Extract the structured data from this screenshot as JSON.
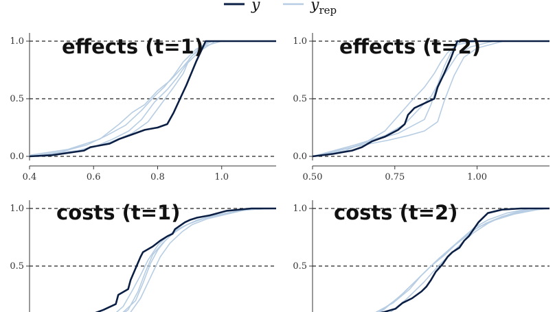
{
  "legend": {
    "items": [
      {
        "label": "y",
        "color": "#0b1f45"
      },
      {
        "label": "y",
        "sub": "rep",
        "color": "#b7cde3"
      }
    ]
  },
  "chart_data": [
    {
      "type": "line",
      "title": "effects (t=1)",
      "xlim": [
        0.4,
        1.17
      ],
      "ylim": [
        0,
        1
      ],
      "xticks": [
        {
          "v": 0.4,
          "label": "0.4"
        },
        {
          "v": 0.6,
          "label": "0.6"
        },
        {
          "v": 0.8,
          "label": "0.8"
        },
        {
          "v": 1.0,
          "label": "1.0"
        }
      ],
      "yticks": [
        {
          "v": 0.0,
          "label": "0.0"
        },
        {
          "v": 0.5,
          "label": "0.5"
        },
        {
          "v": 1.0,
          "label": "1.0"
        }
      ],
      "grid": "horizontal-dashed",
      "series": [
        {
          "role": "y",
          "color": "#0b1f45",
          "x": [
            0.4,
            0.47,
            0.52,
            0.57,
            0.59,
            0.65,
            0.68,
            0.72,
            0.76,
            0.8,
            0.83,
            0.85,
            0.87,
            0.89,
            0.92,
            0.95,
            1.17
          ],
          "y": [
            0.0,
            0.01,
            0.03,
            0.05,
            0.08,
            0.11,
            0.15,
            0.19,
            0.23,
            0.25,
            0.28,
            0.38,
            0.5,
            0.62,
            0.82,
            1.0,
            1.0
          ]
        },
        {
          "role": "y_rep",
          "color": "#b7cde3",
          "x": [
            0.4,
            0.5,
            0.58,
            0.64,
            0.7,
            0.75,
            0.79,
            0.82,
            0.85,
            0.88,
            0.92,
            0.97,
            1.17
          ],
          "y": [
            0.0,
            0.04,
            0.1,
            0.18,
            0.27,
            0.4,
            0.52,
            0.6,
            0.7,
            0.82,
            0.93,
            1.0,
            1.0
          ]
        },
        {
          "role": "y_rep",
          "color": "#b7cde3",
          "x": [
            0.4,
            0.52,
            0.62,
            0.68,
            0.72,
            0.76,
            0.8,
            0.84,
            0.88,
            0.91,
            0.95,
            1.0,
            1.17
          ],
          "y": [
            0.01,
            0.06,
            0.15,
            0.28,
            0.38,
            0.45,
            0.57,
            0.66,
            0.78,
            0.88,
            0.96,
            1.0,
            1.0
          ]
        },
        {
          "role": "y_rep",
          "color": "#b7cde3",
          "x": [
            0.4,
            0.55,
            0.65,
            0.72,
            0.77,
            0.81,
            0.85,
            0.88,
            0.9,
            0.93,
            0.96,
            1.17
          ],
          "y": [
            0.0,
            0.05,
            0.12,
            0.2,
            0.3,
            0.45,
            0.6,
            0.72,
            0.85,
            0.94,
            1.0,
            1.0
          ]
        },
        {
          "role": "y_rep",
          "color": "#b7cde3",
          "x": [
            0.4,
            0.53,
            0.6,
            0.66,
            0.71,
            0.75,
            0.79,
            0.83,
            0.86,
            0.89,
            0.93,
            0.98,
            1.17
          ],
          "y": [
            0.0,
            0.03,
            0.08,
            0.15,
            0.22,
            0.32,
            0.47,
            0.58,
            0.68,
            0.8,
            0.91,
            1.0,
            1.0
          ]
        }
      ]
    },
    {
      "type": "line",
      "title": "effects (t=2)",
      "xlim": [
        0.5,
        1.22
      ],
      "ylim": [
        0,
        1
      ],
      "xticks": [
        {
          "v": 0.5,
          "label": "0.50"
        },
        {
          "v": 0.75,
          "label": "0.75"
        },
        {
          "v": 1.0,
          "label": "1.00"
        }
      ],
      "yticks": [
        {
          "v": 0.0,
          "label": "0.0"
        },
        {
          "v": 0.5,
          "label": "0.5"
        },
        {
          "v": 1.0,
          "label": "1.0"
        }
      ],
      "grid": "horizontal-dashed",
      "series": [
        {
          "role": "y",
          "color": "#0b1f45",
          "x": [
            0.5,
            0.56,
            0.62,
            0.65,
            0.68,
            0.72,
            0.76,
            0.78,
            0.79,
            0.81,
            0.84,
            0.87,
            0.88,
            0.9,
            0.92,
            0.94,
            1.22
          ],
          "y": [
            0.0,
            0.02,
            0.05,
            0.08,
            0.13,
            0.17,
            0.23,
            0.28,
            0.36,
            0.42,
            0.46,
            0.5,
            0.6,
            0.72,
            0.85,
            1.0,
            1.0
          ]
        },
        {
          "role": "y_rep",
          "color": "#b7cde3",
          "x": [
            0.5,
            0.6,
            0.66,
            0.72,
            0.76,
            0.8,
            0.84,
            0.87,
            0.89,
            0.91,
            0.94,
            1.0,
            1.22
          ],
          "y": [
            0.0,
            0.05,
            0.12,
            0.22,
            0.35,
            0.48,
            0.6,
            0.72,
            0.82,
            0.9,
            0.97,
            1.0,
            1.0
          ]
        },
        {
          "role": "y_rep",
          "color": "#b7cde3",
          "x": [
            0.5,
            0.62,
            0.7,
            0.76,
            0.8,
            0.84,
            0.86,
            0.88,
            0.9,
            0.92,
            0.95,
            1.22
          ],
          "y": [
            0.0,
            0.08,
            0.15,
            0.2,
            0.26,
            0.32,
            0.45,
            0.62,
            0.78,
            0.9,
            1.0,
            1.0
          ]
        },
        {
          "role": "y_rep",
          "color": "#b7cde3",
          "x": [
            0.5,
            0.63,
            0.72,
            0.78,
            0.82,
            0.86,
            0.88,
            0.91,
            0.94,
            0.98,
            1.05,
            1.22
          ],
          "y": [
            0.0,
            0.1,
            0.18,
            0.28,
            0.4,
            0.52,
            0.62,
            0.75,
            0.88,
            0.95,
            1.0,
            1.0
          ]
        },
        {
          "role": "y_rep",
          "color": "#b7cde3",
          "x": [
            0.5,
            0.64,
            0.73,
            0.79,
            0.84,
            0.88,
            0.9,
            0.93,
            0.96,
            1.0,
            1.08,
            1.22
          ],
          "y": [
            0.0,
            0.09,
            0.14,
            0.18,
            0.22,
            0.3,
            0.48,
            0.7,
            0.86,
            0.94,
            1.0,
            1.0
          ]
        }
      ]
    },
    {
      "type": "line",
      "title": "costs (t=1)",
      "xlim": [
        0,
        100
      ],
      "ylim": [
        0,
        1
      ],
      "xticks": [],
      "yticks": [
        {
          "v": 0.5,
          "label": "0.5"
        },
        {
          "v": 1.0,
          "label": "1.0"
        }
      ],
      "grid": "horizontal-dashed",
      "series": [
        {
          "role": "y",
          "color": "#0b1f45",
          "x": [
            12,
            20,
            30,
            35,
            36,
            40,
            41,
            43,
            45,
            46,
            50,
            53,
            56,
            58,
            59,
            61,
            63,
            65,
            68,
            73,
            80,
            90,
            100
          ],
          "y": [
            0.0,
            0.04,
            0.12,
            0.17,
            0.25,
            0.3,
            0.38,
            0.48,
            0.58,
            0.62,
            0.67,
            0.72,
            0.76,
            0.78,
            0.82,
            0.85,
            0.88,
            0.9,
            0.92,
            0.94,
            0.98,
            1.0,
            1.0
          ]
        },
        {
          "role": "y_rep",
          "color": "#b7cde3",
          "x": [
            30,
            38,
            42,
            45,
            48,
            52,
            56,
            60,
            66,
            72,
            80,
            90,
            100
          ],
          "y": [
            0.0,
            0.15,
            0.3,
            0.42,
            0.55,
            0.68,
            0.76,
            0.82,
            0.88,
            0.92,
            0.96,
            1.0,
            1.0
          ]
        },
        {
          "role": "y_rep",
          "color": "#b7cde3",
          "x": [
            32,
            40,
            44,
            47,
            50,
            54,
            58,
            63,
            68,
            75,
            85,
            95,
            100
          ],
          "y": [
            0.0,
            0.12,
            0.28,
            0.45,
            0.6,
            0.7,
            0.78,
            0.85,
            0.9,
            0.94,
            0.98,
            1.0,
            1.0
          ]
        },
        {
          "role": "y_rep",
          "color": "#b7cde3",
          "x": [
            34,
            41,
            45,
            49,
            53,
            57,
            62,
            66,
            72,
            80,
            88,
            100
          ],
          "y": [
            0.0,
            0.1,
            0.22,
            0.4,
            0.58,
            0.7,
            0.8,
            0.86,
            0.91,
            0.95,
            0.99,
            1.0
          ]
        },
        {
          "role": "y_rep",
          "color": "#b7cde3",
          "x": [
            28,
            37,
            43,
            46,
            49,
            52,
            55,
            59,
            64,
            70,
            78,
            88,
            100
          ],
          "y": [
            0.0,
            0.08,
            0.2,
            0.35,
            0.52,
            0.64,
            0.72,
            0.8,
            0.86,
            0.91,
            0.95,
            0.99,
            1.0
          ]
        }
      ]
    },
    {
      "type": "line",
      "title": "costs (t=2)",
      "xlim": [
        0,
        100
      ],
      "ylim": [
        0,
        1
      ],
      "xticks": [],
      "yticks": [
        {
          "v": 0.5,
          "label": "0.5"
        },
        {
          "v": 1.0,
          "label": "1.0"
        }
      ],
      "grid": "horizontal-dashed",
      "series": [
        {
          "role": "y",
          "color": "#0b1f45",
          "x": [
            10,
            20,
            30,
            35,
            38,
            42,
            46,
            48,
            50,
            52,
            55,
            57,
            59,
            62,
            64,
            66,
            68,
            70,
            72,
            74,
            80,
            88,
            100
          ],
          "y": [
            0.0,
            0.05,
            0.1,
            0.13,
            0.18,
            0.22,
            0.28,
            0.32,
            0.38,
            0.45,
            0.52,
            0.58,
            0.62,
            0.66,
            0.72,
            0.76,
            0.82,
            0.88,
            0.92,
            0.96,
            0.99,
            1.0,
            1.0
          ]
        },
        {
          "role": "y_rep",
          "color": "#b7cde3",
          "x": [
            18,
            28,
            36,
            42,
            48,
            53,
            58,
            63,
            68,
            74,
            82,
            92,
            100
          ],
          "y": [
            0.0,
            0.1,
            0.22,
            0.34,
            0.46,
            0.56,
            0.65,
            0.74,
            0.83,
            0.9,
            0.96,
            1.0,
            1.0
          ]
        },
        {
          "role": "y_rep",
          "color": "#b7cde3",
          "x": [
            20,
            30,
            38,
            45,
            50,
            56,
            60,
            65,
            70,
            77,
            85,
            95,
            100
          ],
          "y": [
            0.0,
            0.12,
            0.26,
            0.4,
            0.5,
            0.6,
            0.68,
            0.76,
            0.84,
            0.9,
            0.95,
            0.99,
            1.0
          ]
        },
        {
          "role": "y_rep",
          "color": "#b7cde3",
          "x": [
            24,
            33,
            40,
            47,
            53,
            58,
            63,
            68,
            74,
            80,
            88,
            100
          ],
          "y": [
            0.0,
            0.1,
            0.22,
            0.36,
            0.5,
            0.6,
            0.7,
            0.79,
            0.87,
            0.93,
            0.98,
            1.0
          ]
        },
        {
          "role": "y_rep",
          "color": "#b7cde3",
          "x": [
            15,
            25,
            34,
            41,
            46,
            52,
            57,
            62,
            67,
            73,
            80,
            90,
            100
          ],
          "y": [
            0.0,
            0.08,
            0.18,
            0.3,
            0.42,
            0.54,
            0.63,
            0.72,
            0.8,
            0.87,
            0.93,
            0.98,
            1.0
          ]
        }
      ]
    }
  ]
}
